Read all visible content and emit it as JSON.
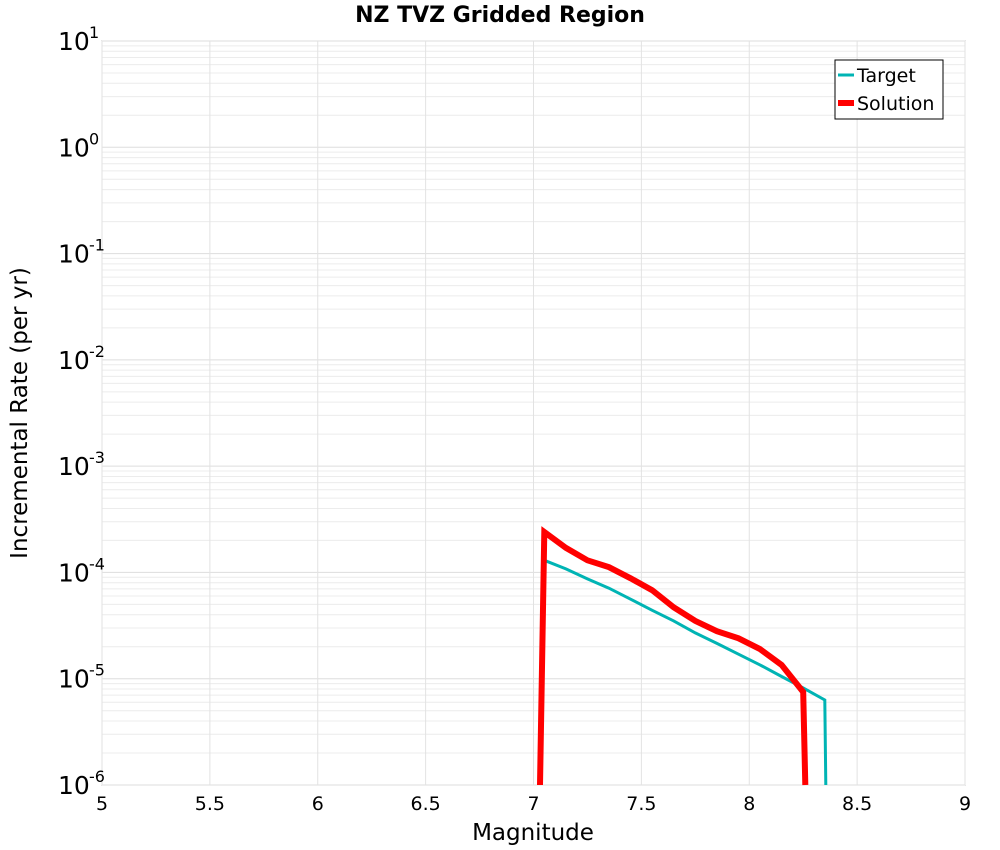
{
  "chart_data": {
    "type": "line",
    "title": "NZ TVZ Gridded Region",
    "xlabel": "Magnitude",
    "ylabel": "Incremental Rate (per yr)",
    "xlim": [
      5,
      9
    ],
    "ylim": [
      1e-06,
      10
    ],
    "yscale": "log",
    "grid": true,
    "xticks": [
      5,
      5.5,
      6,
      6.5,
      7,
      7.5,
      8,
      8.5,
      9
    ],
    "xtick_labels": [
      "5",
      "5.5",
      "6",
      "6.5",
      "7",
      "7.5",
      "8",
      "8.5",
      "9"
    ],
    "ytick_labels": [
      {
        "base": "10",
        "exp": "1",
        "value": 10
      },
      {
        "base": "10",
        "exp": "0",
        "value": 1
      },
      {
        "base": "10",
        "exp": "-1",
        "value": 0.1
      },
      {
        "base": "10",
        "exp": "-2",
        "value": 0.01
      },
      {
        "base": "10",
        "exp": "-3",
        "value": 0.001
      },
      {
        "base": "10",
        "exp": "-4",
        "value": 0.0001
      },
      {
        "base": "10",
        "exp": "-5",
        "value": 1e-05
      },
      {
        "base": "10",
        "exp": "-6",
        "value": 1e-06
      }
    ],
    "legend_position": "top-right",
    "series": [
      {
        "name": "Target",
        "color": "#00b4b4",
        "line_width": 3,
        "x": [
          7.05,
          7.15,
          7.25,
          7.35,
          7.45,
          7.55,
          7.65,
          7.75,
          7.85,
          7.95,
          8.05,
          8.15,
          8.25,
          8.35,
          8.355
        ],
        "y": [
          0.00013,
          0.000108,
          8.7e-05,
          7.1e-05,
          5.6e-05,
          4.4e-05,
          3.5e-05,
          2.7e-05,
          2.15e-05,
          1.7e-05,
          1.35e-05,
          1.05e-05,
          8.2e-06,
          6.3e-06,
          1e-06
        ]
      },
      {
        "name": "Solution",
        "color": "#ff0000",
        "line_width": 6,
        "x": [
          7.03,
          7.05,
          7.15,
          7.25,
          7.35,
          7.45,
          7.55,
          7.65,
          7.75,
          7.85,
          7.95,
          8.05,
          8.15,
          8.25,
          8.26
        ],
        "y": [
          1e-06,
          0.00024,
          0.00017,
          0.00013,
          0.000112,
          8.8e-05,
          6.8e-05,
          4.7e-05,
          3.5e-05,
          2.8e-05,
          2.4e-05,
          1.9e-05,
          1.35e-05,
          7.5e-06,
          1e-06
        ]
      }
    ]
  }
}
